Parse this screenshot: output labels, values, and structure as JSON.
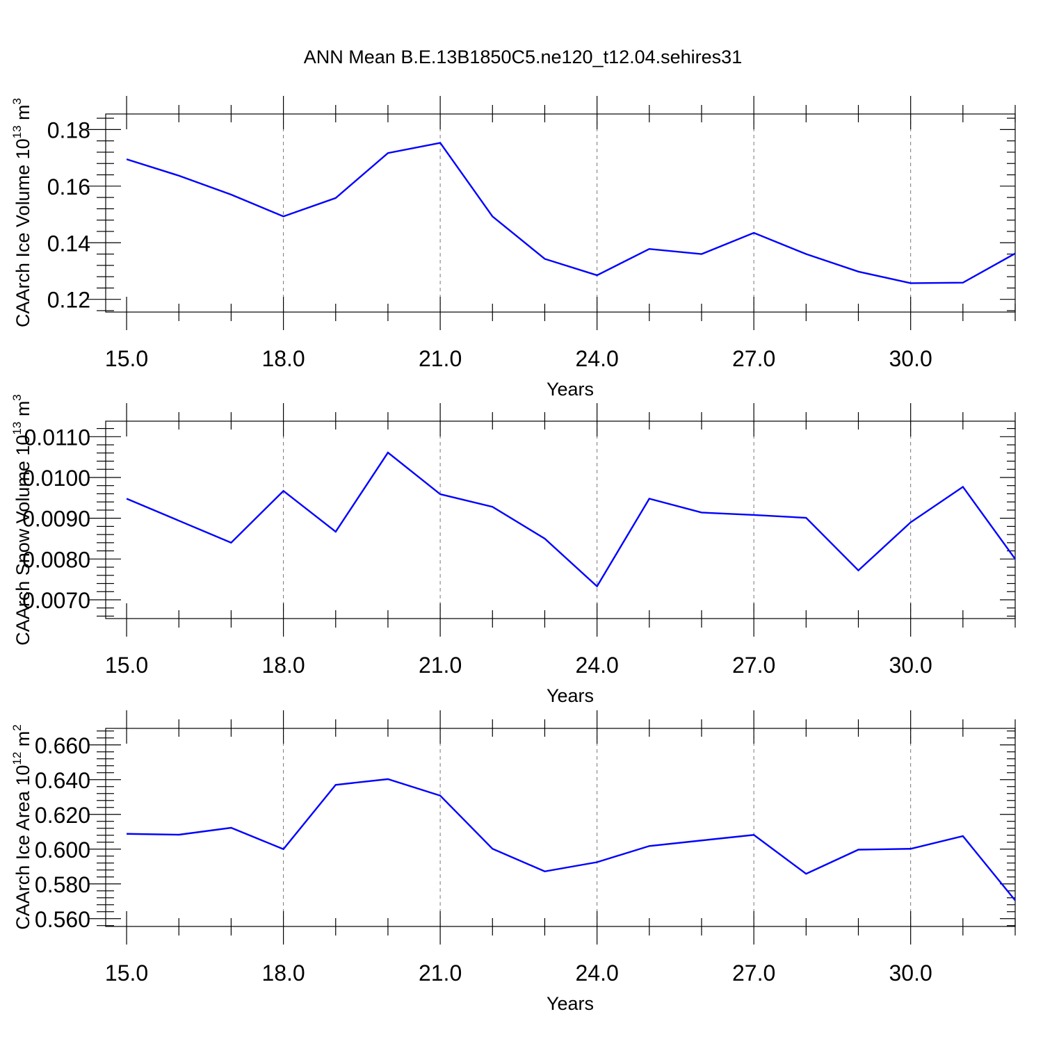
{
  "figure": {
    "title": "ANN Mean B.E.13B1850C5.ne120_t12.04.sehires31"
  },
  "chart_data": [
    {
      "type": "line",
      "xlabel": "Years",
      "ylabel": "CAArch Ice Volume 10",
      "ylabel_sup": "13",
      "ylabel_unit": " m",
      "ylabel_unit_sup": "3",
      "xlim": [
        14.6,
        32.0
      ],
      "ylim": [
        0.1155,
        0.1855
      ],
      "x_ticks": [
        15.0,
        18.0,
        21.0,
        24.0,
        27.0,
        30.0
      ],
      "x_tick_labels": [
        "15.0",
        "18.0",
        "21.0",
        "24.0",
        "27.0",
        "30.0"
      ],
      "y_ticks": [
        0.12,
        0.14,
        0.16,
        0.18
      ],
      "y_tick_labels": [
        "0.12",
        "0.14",
        "0.16",
        "0.18"
      ],
      "grid": "vertical dashed at major x ticks",
      "color": "#0000ff",
      "x": [
        15,
        16,
        17,
        18,
        19,
        20,
        21,
        22,
        23,
        24,
        25,
        26,
        27,
        28,
        29,
        30,
        31,
        32
      ],
      "values": [
        0.1695,
        0.1637,
        0.157,
        0.1493,
        0.1558,
        0.1717,
        0.1753,
        0.1493,
        0.1343,
        0.1285,
        0.1378,
        0.136,
        0.1435,
        0.136,
        0.1298,
        0.1257,
        0.1259,
        0.1362
      ]
    },
    {
      "type": "line",
      "xlabel": "Years",
      "ylabel": "CAArch Snow Volume 10",
      "ylabel_sup": "13",
      "ylabel_unit": " m",
      "ylabel_unit_sup": "3",
      "xlim": [
        14.6,
        32.0
      ],
      "ylim": [
        0.00654,
        0.01138
      ],
      "x_ticks": [
        15.0,
        18.0,
        21.0,
        24.0,
        27.0,
        30.0
      ],
      "x_tick_labels": [
        "15.0",
        "18.0",
        "21.0",
        "24.0",
        "27.0",
        "30.0"
      ],
      "y_ticks": [
        0.007,
        0.008,
        0.009,
        0.01,
        0.011
      ],
      "y_tick_labels": [
        "0.0070",
        "0.0080",
        "0.0090",
        "0.0100",
        "0.0110"
      ],
      "grid": "vertical dashed at major x ticks",
      "color": "#0000ff",
      "x": [
        15,
        16,
        17,
        18,
        19,
        20,
        21,
        22,
        23,
        24,
        25,
        26,
        27,
        28,
        29,
        30,
        31,
        32
      ],
      "values": [
        0.00948,
        0.00894,
        0.0084,
        0.00967,
        0.00867,
        0.01061,
        0.00959,
        0.00928,
        0.0085,
        0.00733,
        0.00948,
        0.00914,
        0.00908,
        0.00901,
        0.00772,
        0.0089,
        0.00977,
        0.008
      ]
    },
    {
      "type": "line",
      "xlabel": "Years",
      "ylabel": "CAArch Ice Area 10",
      "ylabel_sup": "12",
      "ylabel_unit": " m",
      "ylabel_unit_sup": "2",
      "xlim": [
        14.6,
        32.0
      ],
      "ylim": [
        0.5555,
        0.6695
      ],
      "x_ticks": [
        15.0,
        18.0,
        21.0,
        24.0,
        27.0,
        30.0
      ],
      "x_tick_labels": [
        "15.0",
        "18.0",
        "21.0",
        "24.0",
        "27.0",
        "30.0"
      ],
      "y_ticks": [
        0.56,
        0.58,
        0.6,
        0.62,
        0.64,
        0.66
      ],
      "y_tick_labels": [
        "0.560",
        "0.580",
        "0.600",
        "0.620",
        "0.640",
        "0.660"
      ],
      "grid": "vertical dashed at major x ticks",
      "color": "#0000ff",
      "x": [
        15,
        16,
        17,
        18,
        19,
        20,
        21,
        22,
        23,
        24,
        25,
        26,
        27,
        28,
        29,
        30,
        31,
        32
      ],
      "values": [
        0.6088,
        0.6083,
        0.6123,
        0.6,
        0.637,
        0.6403,
        0.6308,
        0.6002,
        0.5872,
        0.5925,
        0.6018,
        0.605,
        0.6082,
        0.5858,
        0.5997,
        0.6002,
        0.6075,
        0.5705
      ]
    }
  ]
}
